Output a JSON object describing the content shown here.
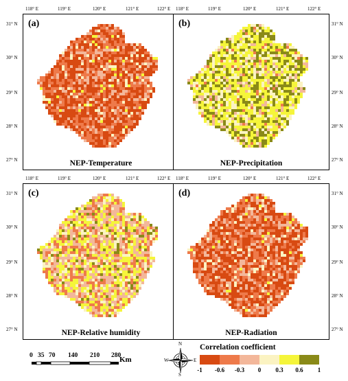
{
  "lon_labels": [
    "118° E",
    "119° E",
    "120° E",
    "121° E",
    "122° E"
  ],
  "lat_labels": [
    "31° N",
    "30° N",
    "29° N",
    "28° N",
    "27° N"
  ],
  "panels": [
    {
      "label": "(a)",
      "title": "NEP-Temperature",
      "palette": "negative"
    },
    {
      "label": "(b)",
      "title": "NEP-Precipitation",
      "palette": "positive"
    },
    {
      "label": "(c)",
      "title": "NEP-Relative humidity",
      "palette": "mixed"
    },
    {
      "label": "(d)",
      "title": "NEP-Radiation",
      "palette": "negative"
    }
  ],
  "scale_bar": {
    "ticks": [
      "0",
      "35",
      "70",
      "140",
      "210",
      "280"
    ],
    "unit": "Km"
  },
  "compass": {
    "n": "N",
    "s": "S",
    "e": "E",
    "w": "W"
  },
  "legend": {
    "title": "Correlation coefficient",
    "colors": [
      "#d84a12",
      "#ee7a4a",
      "#f3b79a",
      "#fbf3c2",
      "#f5f53a",
      "#8a8a18"
    ],
    "ticks": [
      "-1",
      "-0.6",
      "-0.3",
      "0",
      "0.3",
      "0.6",
      "1"
    ]
  }
}
